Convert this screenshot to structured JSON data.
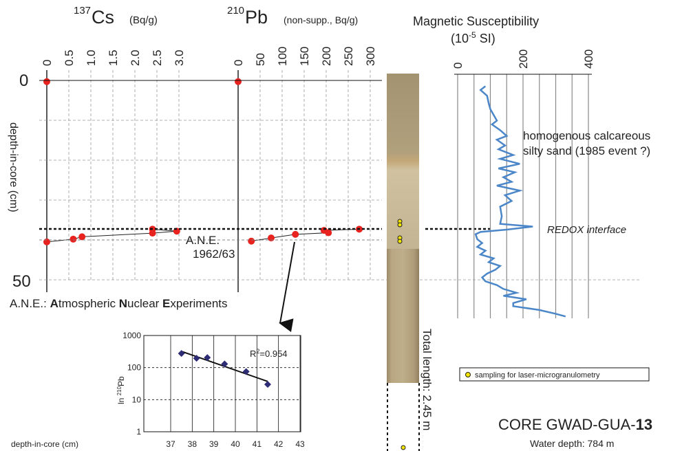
{
  "cs_panel": {
    "title_sup": "137",
    "title_main": "Cs",
    "unit": "(Bq/g)",
    "ticks": [
      "0",
      "0.5",
      "1.0",
      "1.5",
      "2.0",
      "2.5",
      "3.0"
    ]
  },
  "pb_panel": {
    "title_sup": "210",
    "title_main": "Pb",
    "unit": "(non-supp., Bq/g)",
    "ticks": [
      "0",
      "50",
      "100",
      "150",
      "200",
      "250",
      "300"
    ]
  },
  "depth_axis": {
    "label": "depth-in-core (cm)",
    "tick_0": "0",
    "tick_50": "50"
  },
  "ms_panel": {
    "title_line1": "Magnetic Susceptibility",
    "title_line2_base": "(10",
    "title_line2_sup": "-5",
    "title_line2_end": " SI)",
    "ticks": [
      "0",
      "200",
      "400"
    ]
  },
  "annotations": {
    "ane_line1": "A.N.E.",
    "ane_line2": "1962/63",
    "ane_def": {
      "prefix": "A.N.E.: ",
      "a_bold": "A",
      "a_rest": "tmospheric ",
      "n_bold": "N",
      "n_rest": "uclear ",
      "e_bold": "E",
      "e_rest": "xperiments"
    },
    "sand_line1": "homogenous calcareous",
    "sand_line2": "silty sand (1985 event ?)",
    "redox": "REDOX interface",
    "total_length": "Total length: 2.45 m",
    "legend_sampling": "sampling for laser-microgranulometry",
    "core_name_prefix": "CORE GWAD-GUA-",
    "core_name_bold": "13",
    "water_depth": "Water depth: 784 m"
  },
  "inset": {
    "ylabel_prefix": "ln ",
    "ylabel_sup": "210",
    "ylabel_main": "Pb",
    "xlabel": "depth-in-core (cm)",
    "r2_base": "R",
    "r2_sup": "2",
    "r2_value": "=0.954",
    "yticks": [
      "1000",
      "100",
      "10",
      "1"
    ],
    "xticks": [
      "37",
      "38",
      "39",
      "40",
      "41",
      "42",
      "43"
    ]
  },
  "colors": {
    "data_red": "#e8231f",
    "ms_blue": "#4a86c8",
    "inset_points": "#2d2c74",
    "sample_yellow": "#f2e300",
    "grid": "#999999",
    "core_tan": "#b5a07a"
  },
  "chart_data": [
    {
      "type": "line",
      "title": "137Cs (Bq/g)",
      "xlabel": "137Cs (Bq/g)",
      "ylabel": "depth-in-core (cm)",
      "xlim": [
        0,
        3.0
      ],
      "ylim": [
        50,
        0
      ],
      "grid": true,
      "series": [
        {
          "name": "137Cs",
          "points": [
            {
              "x": 0.0,
              "y": 0.3
            },
            {
              "x": 0.0,
              "y": 40.5
            },
            {
              "x": 0.6,
              "y": 39.8
            },
            {
              "x": 0.8,
              "y": 39.2
            },
            {
              "x": 2.4,
              "y": 37.3
            },
            {
              "x": 2.4,
              "y": 38.3
            },
            {
              "x": 2.95,
              "y": 37.8
            }
          ]
        }
      ]
    },
    {
      "type": "line",
      "title": "210Pb (non-supp., Bq/g)",
      "xlabel": "210Pb (non-supp., Bq/g)",
      "ylabel": "depth-in-core (cm)",
      "xlim": [
        0,
        300
      ],
      "ylim": [
        50,
        0
      ],
      "grid": true,
      "series": [
        {
          "name": "210Pb",
          "points": [
            {
              "x": 0,
              "y": 0.3
            },
            {
              "x": 30,
              "y": 40.3
            },
            {
              "x": 75,
              "y": 39.5
            },
            {
              "x": 130,
              "y": 38.6
            },
            {
              "x": 195,
              "y": 37.6
            },
            {
              "x": 205,
              "y": 38.2
            },
            {
              "x": 275,
              "y": 37.3
            }
          ]
        }
      ]
    },
    {
      "type": "scatter",
      "title": "",
      "xlabel": "depth-in-core (cm)",
      "ylabel": "ln 210Pb",
      "xlim": [
        36.5,
        43.5
      ],
      "ylim": [
        1,
        1000
      ],
      "log_y": true,
      "r_squared": 0.954,
      "series": [
        {
          "name": "210Pb",
          "points": [
            {
              "x": 37.5,
              "y": 275
            },
            {
              "x": 38.2,
              "y": 195
            },
            {
              "x": 38.7,
              "y": 205
            },
            {
              "x": 39.5,
              "y": 130
            },
            {
              "x": 40.5,
              "y": 75
            },
            {
              "x": 41.5,
              "y": 30
            }
          ]
        },
        {
          "name": "trend",
          "points": [
            {
              "x": 37.5,
              "y": 320
            },
            {
              "x": 41.5,
              "y": 37
            }
          ]
        }
      ]
    },
    {
      "type": "line",
      "title": "Magnetic Susceptibility (10-5 SI)",
      "xlabel": "Magnetic Susceptibility (10-5 SI)",
      "ylabel": "depth-in-core (cm)",
      "xlim": [
        0,
        400
      ],
      "ylim": [
        62,
        0
      ],
      "grid": true,
      "series": [
        {
          "name": "MS",
          "points": [
            {
              "x": 85,
              "y": 1.5
            },
            {
              "x": 70,
              "y": 2.5
            },
            {
              "x": 90,
              "y": 4
            },
            {
              "x": 95,
              "y": 6
            },
            {
              "x": 100,
              "y": 7.5
            },
            {
              "x": 110,
              "y": 9
            },
            {
              "x": 120,
              "y": 10.5
            },
            {
              "x": 105,
              "y": 11.5
            },
            {
              "x": 130,
              "y": 13
            },
            {
              "x": 150,
              "y": 14.5
            },
            {
              "x": 120,
              "y": 15.5
            },
            {
              "x": 145,
              "y": 17
            },
            {
              "x": 125,
              "y": 18
            },
            {
              "x": 170,
              "y": 19.5
            },
            {
              "x": 130,
              "y": 20.5
            },
            {
              "x": 190,
              "y": 21.8
            },
            {
              "x": 125,
              "y": 23
            },
            {
              "x": 175,
              "y": 24
            },
            {
              "x": 140,
              "y": 25.3
            },
            {
              "x": 165,
              "y": 26.5
            },
            {
              "x": 120,
              "y": 27.5
            },
            {
              "x": 190,
              "y": 28.8
            },
            {
              "x": 145,
              "y": 30
            },
            {
              "x": 165,
              "y": 31.5
            },
            {
              "x": 130,
              "y": 33
            },
            {
              "x": 135,
              "y": 35.5
            },
            {
              "x": 130,
              "y": 37.5
            },
            {
              "x": 230,
              "y": 38.2
            },
            {
              "x": 150,
              "y": 39
            },
            {
              "x": 70,
              "y": 39.6
            },
            {
              "x": 55,
              "y": 40.2
            },
            {
              "x": 60,
              "y": 41.5
            },
            {
              "x": 75,
              "y": 42.5
            },
            {
              "x": 60,
              "y": 43.5
            },
            {
              "x": 85,
              "y": 44.5
            },
            {
              "x": 70,
              "y": 45.5
            },
            {
              "x": 110,
              "y": 46.5
            },
            {
              "x": 95,
              "y": 47.5
            },
            {
              "x": 130,
              "y": 48.5
            },
            {
              "x": 115,
              "y": 49.5
            },
            {
              "x": 90,
              "y": 50.5
            },
            {
              "x": 75,
              "y": 51.5
            },
            {
              "x": 85,
              "y": 52.5
            },
            {
              "x": 120,
              "y": 53.5
            },
            {
              "x": 140,
              "y": 54.5
            },
            {
              "x": 180,
              "y": 55.5
            },
            {
              "x": 140,
              "y": 56.3
            },
            {
              "x": 210,
              "y": 57.2
            },
            {
              "x": 170,
              "y": 58.2
            },
            {
              "x": 170,
              "y": 59
            },
            {
              "x": 250,
              "y": 60
            },
            {
              "x": 300,
              "y": 61
            },
            {
              "x": 330,
              "y": 61.7
            }
          ]
        }
      ]
    }
  ]
}
